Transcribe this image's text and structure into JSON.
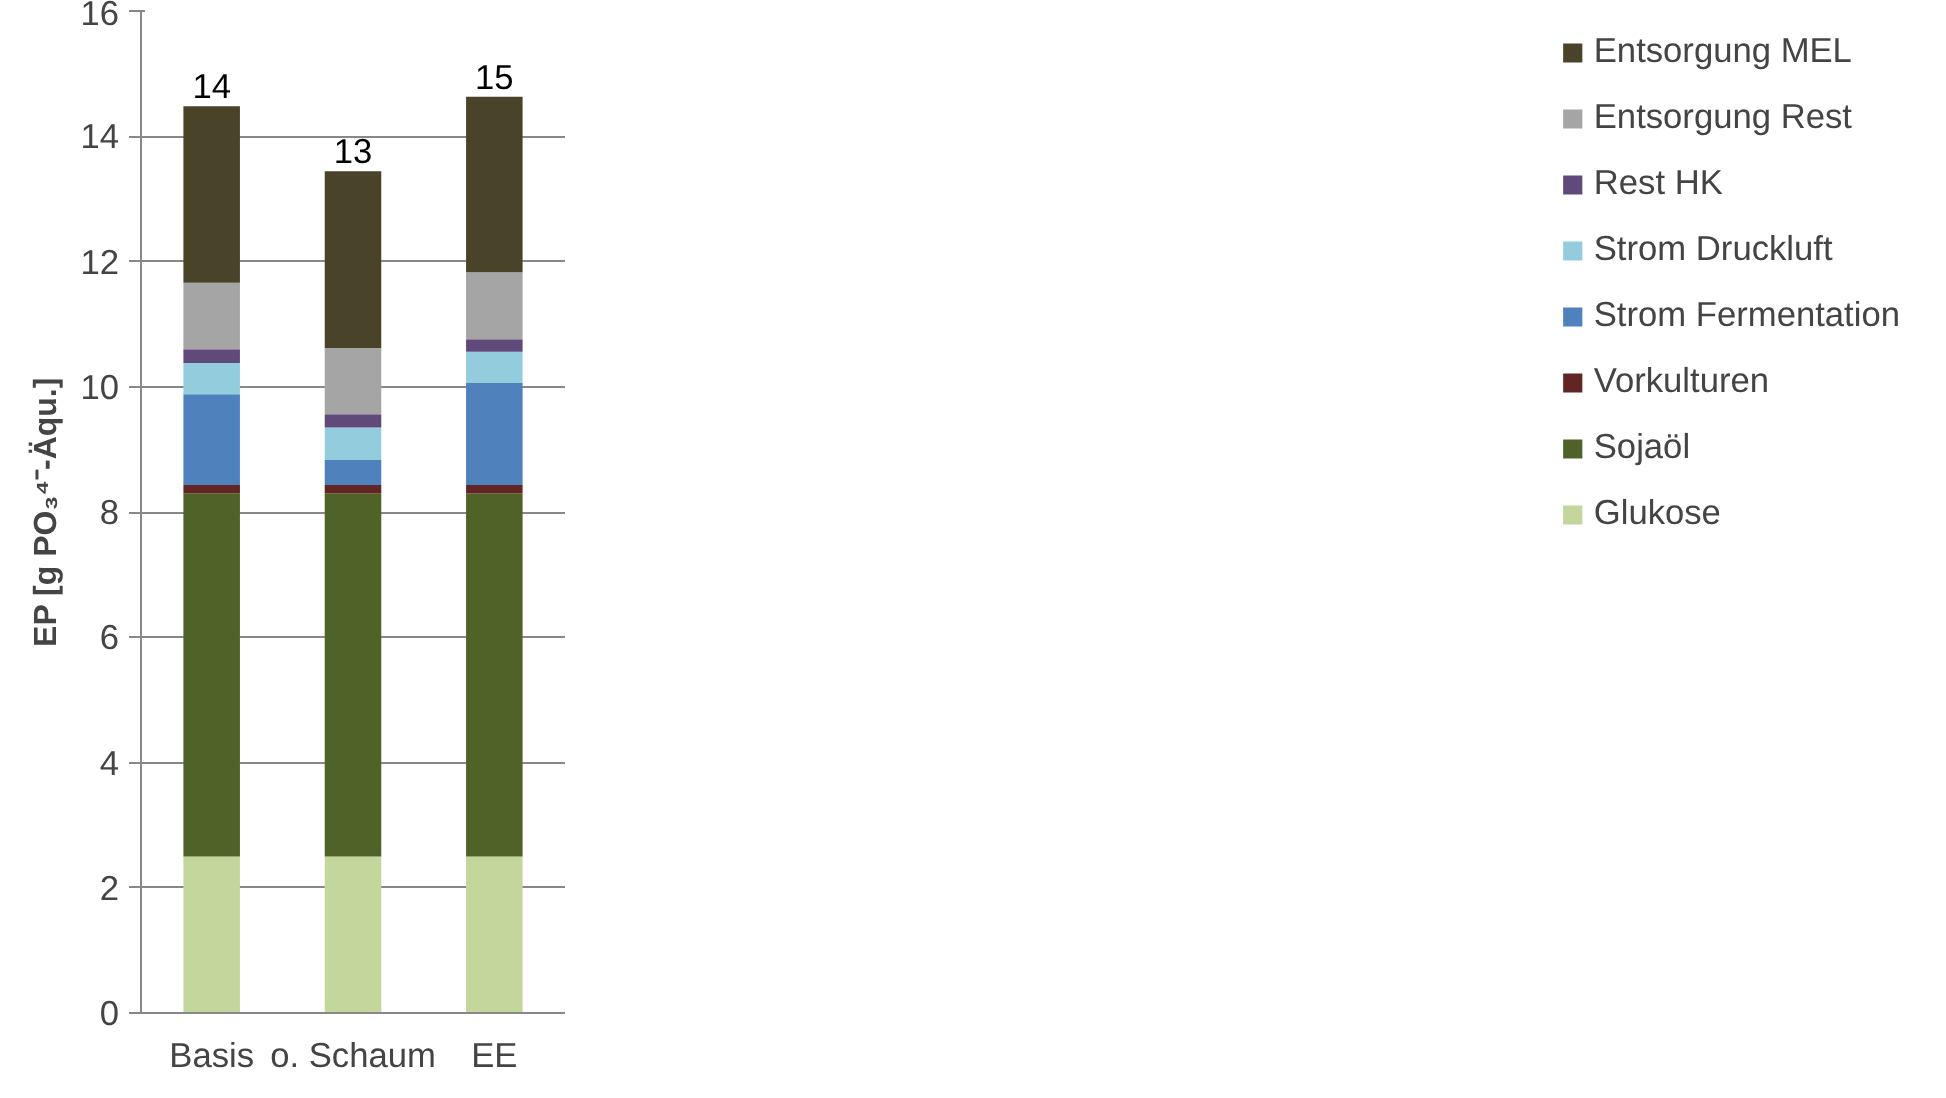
{
  "chart_data": {
    "type": "bar",
    "stacked": true,
    "ylabel": "EP [g PO₃⁴⁻-Äqu.]",
    "categories": [
      "Basis",
      "o. Schaum",
      "EE"
    ],
    "series": [
      {
        "name": "Glukose",
        "color": "#c3d69b",
        "values": [
          2.5,
          2.5,
          2.5
        ]
      },
      {
        "name": "Sojaöl",
        "color": "#4f6228",
        "values": [
          5.8,
          5.8,
          5.8
        ]
      },
      {
        "name": "Vorkulturen",
        "color": "#632523",
        "values": [
          0.13,
          0.13,
          0.13
        ]
      },
      {
        "name": "Strom Fermentation",
        "color": "#4f81bd",
        "values": [
          1.45,
          0.4,
          1.63
        ]
      },
      {
        "name": "Strom Druckluft",
        "color": "#93cddd",
        "values": [
          0.5,
          0.52,
          0.5
        ]
      },
      {
        "name": "Rest HK",
        "color": "#604a7b",
        "values": [
          0.22,
          0.21,
          0.2
        ]
      },
      {
        "name": "Entsorgung Rest",
        "color": "#a5a5a5",
        "values": [
          1.06,
          1.06,
          1.07
        ]
      },
      {
        "name": "Entsorgung MEL",
        "color": "#494429",
        "values": [
          2.82,
          2.82,
          2.8
        ]
      }
    ],
    "totals": [
      "14",
      "13",
      "15"
    ],
    "ylim": [
      0,
      16
    ],
    "yticks": [
      0,
      2,
      4,
      6,
      8,
      10,
      12,
      14,
      16
    ],
    "grid": "y",
    "legend": "right"
  }
}
